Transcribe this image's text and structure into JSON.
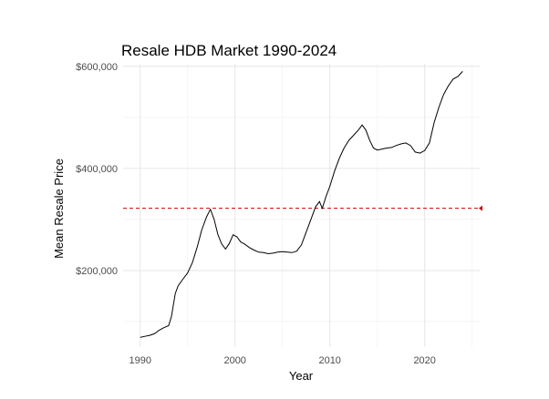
{
  "chart_data": {
    "type": "line",
    "title": "Resale HDB Market 1990-2024",
    "xlabel": "Year",
    "ylabel": "Mean Resale Price",
    "xlim": [
      1988.2,
      2025.8
    ],
    "ylim": [
      50000,
      605000
    ],
    "x_ticks": [
      1990,
      2000,
      2010,
      2020
    ],
    "x_tick_labels": [
      "1990",
      "2000",
      "2010",
      "2020"
    ],
    "y_ticks": [
      200000,
      400000,
      600000
    ],
    "y_tick_labels": [
      "$200,000",
      "$400,000",
      "$600,000"
    ],
    "grid": true,
    "legend": "none",
    "reference_line": {
      "axis": "y",
      "value": 322000,
      "style": "dashed",
      "color": "#cc0000"
    },
    "line_color": "#000000",
    "series": [
      {
        "x": [
          1990.0,
          1990.5,
          1991.0,
          1991.5,
          1992.0,
          1992.5,
          1993.0,
          1993.3,
          1993.7,
          1994.0,
          1994.5,
          1995.0,
          1995.5,
          1996.0,
          1996.5,
          1997.0,
          1997.4,
          1997.8,
          1998.2,
          1998.6,
          1999.0,
          1999.4,
          1999.8,
          2000.2,
          2000.6,
          2001.0,
          2001.5,
          2002.0,
          2002.5,
          2003.0,
          2003.5,
          2004.0,
          2004.5,
          2005.0,
          2005.5,
          2006.0,
          2006.5,
          2007.0,
          2007.5,
          2008.0,
          2008.5,
          2008.9,
          2009.2,
          2009.6,
          2010.0,
          2010.5,
          2011.0,
          2011.5,
          2012.0,
          2012.5,
          2013.0,
          2013.4,
          2013.8,
          2014.2,
          2014.6,
          2015.0,
          2015.5,
          2016.0,
          2016.5,
          2017.0,
          2017.5,
          2018.0,
          2018.5,
          2019.0,
          2019.5,
          2020.0,
          2020.5,
          2021.0,
          2021.5,
          2022.0,
          2022.5,
          2023.0,
          2023.5,
          2024.0
        ],
        "y": [
          69000,
          71000,
          73000,
          76000,
          83000,
          88000,
          92000,
          110000,
          155000,
          170000,
          183000,
          195000,
          215000,
          245000,
          280000,
          305000,
          320000,
          300000,
          270000,
          252000,
          242000,
          253000,
          270000,
          266000,
          256000,
          252000,
          245000,
          240000,
          236000,
          235000,
          233000,
          234000,
          236000,
          237000,
          236000,
          235000,
          238000,
          250000,
          275000,
          300000,
          325000,
          335000,
          322000,
          345000,
          365000,
          395000,
          420000,
          440000,
          455000,
          465000,
          475000,
          485000,
          475000,
          455000,
          440000,
          436000,
          438000,
          440000,
          441000,
          445000,
          448000,
          450000,
          445000,
          432000,
          430000,
          435000,
          450000,
          490000,
          520000,
          545000,
          562000,
          575000,
          580000,
          590000
        ]
      }
    ]
  }
}
